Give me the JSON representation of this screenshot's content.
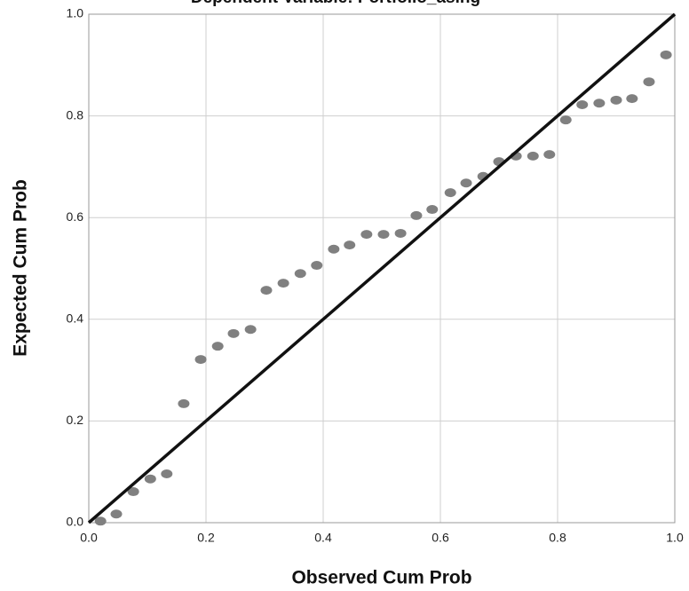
{
  "chart_data": {
    "type": "scatter",
    "title": "Dependent Variable: Portfolio_asing",
    "x_label": "Observed Cum Prob",
    "y_label": "Expected Cum Prob",
    "xlim": [
      0,
      1
    ],
    "ylim": [
      0,
      1
    ],
    "xticks": [
      {
        "value": 0,
        "label": "0.0"
      },
      0.2,
      0.4,
      0.6,
      0.8,
      {
        "value": 1,
        "label": "1.0"
      }
    ],
    "yticks": [
      {
        "value": 0,
        "label": "0.0"
      },
      0.2,
      0.4,
      0.6,
      0.8,
      {
        "value": 1,
        "label": "1.0"
      }
    ],
    "grid": true,
    "reference_line": true,
    "color": "#808080",
    "x": [
      0.02,
      0.047,
      0.076,
      0.105,
      0.133,
      0.162,
      0.191,
      0.22,
      0.247,
      0.276,
      0.303,
      0.332,
      0.361,
      0.389,
      0.418,
      0.445,
      0.474,
      0.503,
      0.532,
      0.559,
      0.586,
      0.617,
      0.644,
      0.673,
      0.7,
      0.729,
      0.758,
      0.786,
      0.814,
      0.842,
      0.871,
      0.9,
      0.927,
      0.956,
      0.985
    ],
    "values": [
      0.003,
      0.017,
      0.061,
      0.086,
      0.096,
      0.234,
      0.321,
      0.347,
      0.372,
      0.38,
      0.457,
      0.471,
      0.49,
      0.506,
      0.538,
      0.546,
      0.567,
      0.567,
      0.569,
      0.604,
      0.616,
      0.649,
      0.668,
      0.681,
      0.71,
      0.721,
      0.721,
      0.724,
      0.792,
      0.822,
      0.825,
      0.831,
      0.834,
      0.867,
      0.92
    ]
  }
}
